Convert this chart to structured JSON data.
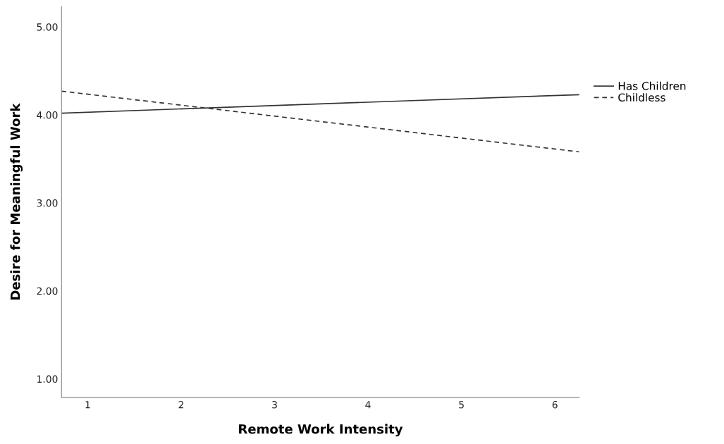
{
  "chart_data": {
    "type": "line",
    "xlabel": "Remote Work Intensity",
    "ylabel": "Desire for Meaningful Work",
    "x": [
      0.72,
      6.26
    ],
    "series": [
      {
        "name": "Has Children",
        "color": "#333333",
        "line_style": "solid",
        "values": [
          4.02,
          4.23
        ]
      },
      {
        "name": "Childless",
        "color": "#333333",
        "line_style": "dashed",
        "values": [
          4.27,
          3.58
        ]
      }
    ],
    "xlim": [
      0.72,
      6.26
    ],
    "xticks": [
      1,
      2,
      3,
      4,
      5,
      6
    ],
    "ylim": [
      0.79,
      5.23
    ],
    "yticks": [
      {
        "value": 1,
        "label": "1.00"
      },
      {
        "value": 2,
        "label": "2.00"
      },
      {
        "value": 3,
        "label": "3.00"
      },
      {
        "value": 4,
        "label": "4.00"
      },
      {
        "value": 5,
        "label": "5.00"
      }
    ],
    "grid": false,
    "legend": "right",
    "marker": "none"
  }
}
